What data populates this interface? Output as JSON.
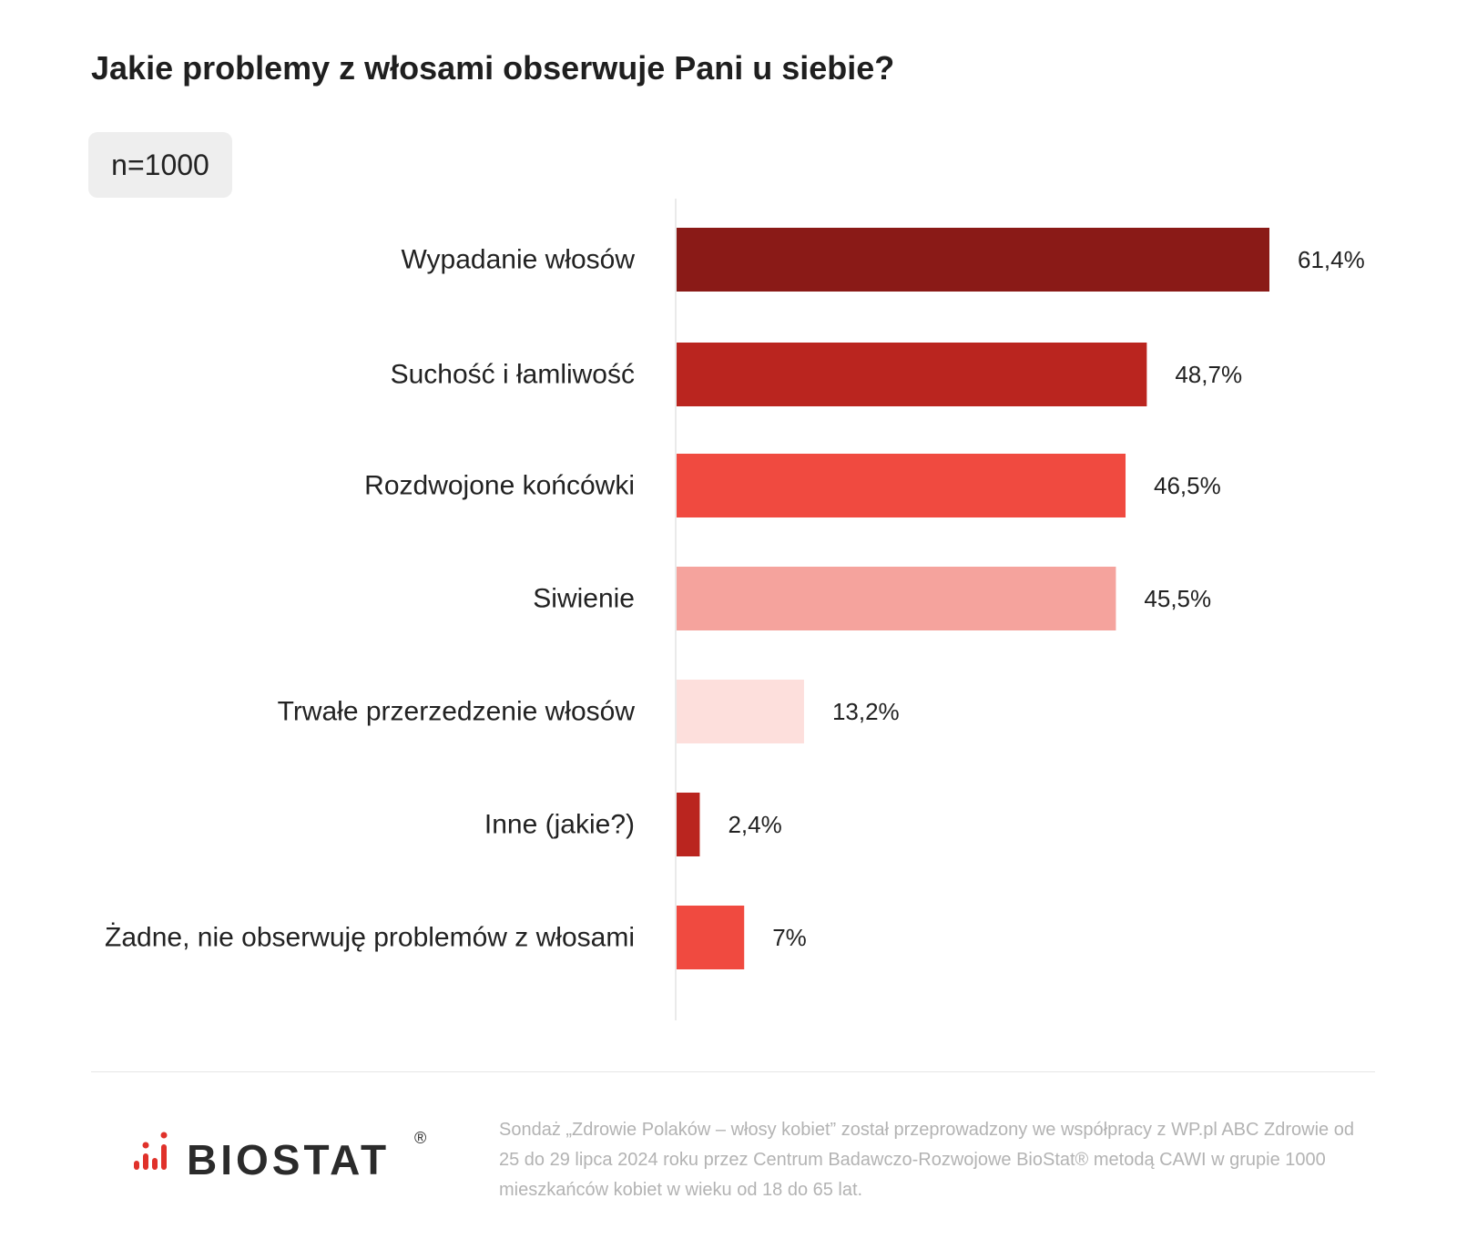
{
  "title": "Jakie problemy z włosami obserwuje Pani u siebie?",
  "sample": "n=1000",
  "chart_data": {
    "type": "bar",
    "orientation": "horizontal",
    "title": "Jakie problemy z włosami obserwuje Pani u siebie?",
    "xlabel": "",
    "ylabel": "",
    "xlim": [
      0,
      61.4
    ],
    "grid": false,
    "legend": "none",
    "categories": [
      "Wypadanie włosów",
      "Suchość i łamliwość",
      "Rozdwojone końcówki",
      "Siwienie",
      "Trwałe przerzedzenie włosów",
      "Inne (jakie?)",
      "Żadne, nie obserwuję problemów z włosami"
    ],
    "values": [
      61.4,
      48.7,
      46.5,
      45.5,
      13.2,
      2.4,
      7
    ],
    "value_labels": [
      "61,4%",
      "48,7%",
      "46,5%",
      "45,5%",
      "13,2%",
      "2,4%",
      "7%"
    ],
    "colors": [
      "#8a1a17",
      "#ba251f",
      "#f04a40",
      "#f5a39d",
      "#fddfdc",
      "#ba251f",
      "#f04a40"
    ]
  },
  "footer": {
    "brand": "BIOSTAT",
    "registered": "®",
    "note": "Sondaż „Zdrowie Polaków – włosy kobiet” został przeprowadzony we współpracy z WP.pl ABC Zdrowie od 25 do 29 lipca 2024 roku przez Centrum Badawczo-Rozwojowe BioStat® metodą CAWI w grupie 1000 mieszkańców kobiet w wieku od 18 do 65 lat.",
    "logo_color": "#e0312a"
  }
}
